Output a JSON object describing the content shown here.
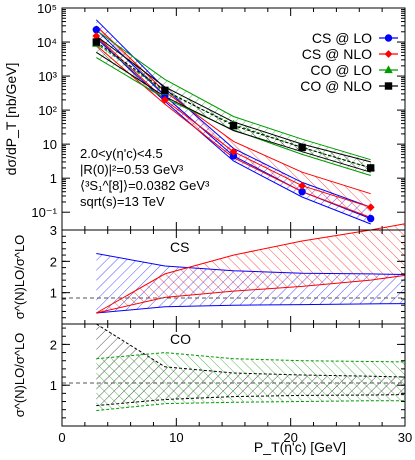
{
  "chart_data": [
    {
      "type": "line",
      "panel": "top",
      "ylabel": "dσ/dP_T [nb/GeV]",
      "yscale": "log",
      "xlim": [
        0,
        30
      ],
      "ylim": [
        0.03,
        100000
      ],
      "x_ticks": [
        "0",
        "10",
        "20",
        "30"
      ],
      "y_ticks": [
        "10⁻¹",
        "1",
        "10",
        "10²",
        "10³",
        "10⁴",
        "10⁵"
      ],
      "y_tick_values": [
        0.1,
        1,
        10,
        100,
        1000,
        10000,
        100000
      ],
      "annotations": [
        "2.0<y(η'c)<4.5",
        "|R(0)|²=0.53 GeV³",
        "⟨³S₁^[8]⟩=0.0382 GeV³",
        "sqrt(s)=13 TeV"
      ],
      "legend_position": "top-right",
      "series": [
        {
          "name": "CS @ LO",
          "color": "#0000ff",
          "marker": "circle",
          "x": [
            3,
            9,
            15,
            21,
            27
          ],
          "y": [
            23000,
            260,
            4.5,
            0.4,
            0.065
          ],
          "band_low": [
            13000,
            180,
            3.2,
            0.28,
            0.045
          ],
          "band_high": [
            45000,
            430,
            7.5,
            0.75,
            0.14
          ]
        },
        {
          "name": "CS @ NLO",
          "color": "#ff0000",
          "marker": "diamond",
          "x": [
            3,
            9,
            15,
            21,
            27
          ],
          "y": [
            15000,
            200,
            6,
            0.6,
            0.14
          ],
          "band_low": [
            8000,
            150,
            4,
            0.4,
            0.07
          ],
          "band_high": [
            30000,
            350,
            12,
            1.5,
            0.35
          ]
        },
        {
          "name": "CO @ LO",
          "color": "#009900",
          "marker": "triangle",
          "x": [
            3,
            9,
            15,
            21,
            27
          ],
          "y": [
            9000,
            350,
            38,
            8,
            2
          ],
          "band_low": [
            3500,
            220,
            26,
            5,
            1.2
          ],
          "band_high": [
            22000,
            800,
            65,
            14,
            3.5
          ]
        },
        {
          "name": "CO @ NLO",
          "color": "#000000",
          "marker": "square",
          "x": [
            3,
            9,
            15,
            21,
            27
          ],
          "y": [
            10000,
            380,
            35,
            8,
            2
          ],
          "band_low": [
            5000,
            250,
            25,
            6,
            1.5
          ],
          "band_high": [
            15000,
            480,
            45,
            10,
            3
          ]
        }
      ]
    },
    {
      "type": "area",
      "panel": "middle",
      "label": "CS",
      "ylabel": "σ^(N)LO/σ^LO",
      "xlim": [
        0,
        30
      ],
      "ylim": [
        0,
        3
      ],
      "y_ticks": [
        "1",
        "2",
        "3"
      ],
      "y_tick_values": [
        1,
        2,
        3
      ],
      "reference_line": 1,
      "bands": [
        {
          "color": "#0000ff",
          "x": [
            3,
            9,
            15,
            21,
            27,
            30
          ],
          "low": [
            0.35,
            0.55,
            0.6,
            0.62,
            0.64,
            0.65
          ],
          "high": [
            2.25,
            1.85,
            1.7,
            1.62,
            1.6,
            1.58
          ]
        },
        {
          "color": "#ff0000",
          "x": [
            3,
            9,
            15,
            21,
            27,
            30
          ],
          "low": [
            0.35,
            0.85,
            1.05,
            1.2,
            1.4,
            1.55
          ],
          "high": [
            0.35,
            1.6,
            2.2,
            2.65,
            3.0,
            3.2
          ]
        }
      ]
    },
    {
      "type": "area",
      "panel": "bottom",
      "label": "CO",
      "xlabel": "P_T(η'c) [GeV]",
      "ylabel": "σ^(N)LO/σ^LO",
      "xlim": [
        0,
        30
      ],
      "ylim": [
        0,
        2.5
      ],
      "x_ticks": [
        "0",
        "10",
        "20",
        "30"
      ],
      "y_ticks": [
        "1",
        "2"
      ],
      "y_tick_values": [
        1,
        2
      ],
      "reference_line": 1,
      "bands": [
        {
          "color": "#000000",
          "x": [
            3,
            9,
            15,
            21,
            27,
            30
          ],
          "low": [
            0.5,
            0.65,
            0.72,
            0.75,
            0.76,
            0.77
          ],
          "high": [
            2.5,
            1.45,
            1.3,
            1.25,
            1.22,
            1.2
          ]
        },
        {
          "color": "#009900",
          "x": [
            3,
            9,
            15,
            21,
            27,
            30
          ],
          "low": [
            0.38,
            0.55,
            0.58,
            0.6,
            0.62,
            0.62
          ],
          "high": [
            1.65,
            1.8,
            1.65,
            1.6,
            1.58,
            1.57
          ]
        }
      ]
    }
  ]
}
